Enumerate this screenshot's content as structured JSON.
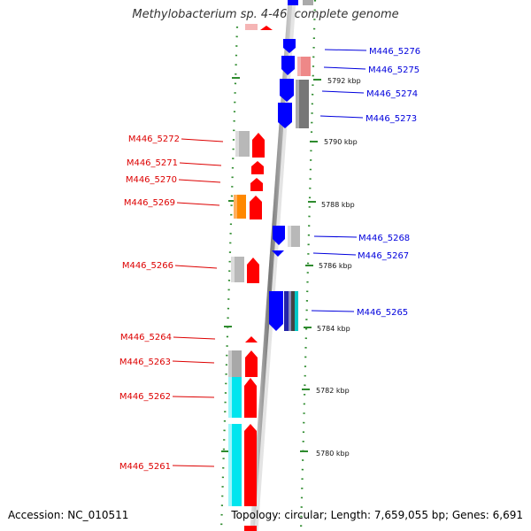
{
  "title": "Methylobacterium sp. 4-46, complete genome",
  "accession": "Accession: NC_010511",
  "topology": "Topology: circular; Length: 7,659,055 bp; Genes: 6,691",
  "ruler": [
    "5792 kbp",
    "5790 kbp",
    "5788 kbp",
    "5786 kbp",
    "5784 kbp",
    "5782 kbp",
    "5780 kbp"
  ],
  "colors": {
    "forward": "#ff0000",
    "reverse": "#0000ff",
    "grey": "#b8b8b8",
    "orange": "#ff8800",
    "cyan": "#00e5ee",
    "pink": "#ee8888",
    "dots": "#2e8b2e"
  },
  "genes_reverse": [
    {
      "label": "M446_5276"
    },
    {
      "label": "M446_5275"
    },
    {
      "label": "M446_5274"
    },
    {
      "label": "M446_5273"
    },
    {
      "label": "M446_5268"
    },
    {
      "label": "M446_5267"
    },
    {
      "label": "M446_5265"
    }
  ],
  "genes_forward": [
    {
      "label": "M446_5272"
    },
    {
      "label": "M446_5271"
    },
    {
      "label": "M446_5270"
    },
    {
      "label": "M446_5269"
    },
    {
      "label": "M446_5266"
    },
    {
      "label": "M446_5264"
    },
    {
      "label": "M446_5263"
    },
    {
      "label": "M446_5262"
    },
    {
      "label": "M446_5261"
    }
  ]
}
